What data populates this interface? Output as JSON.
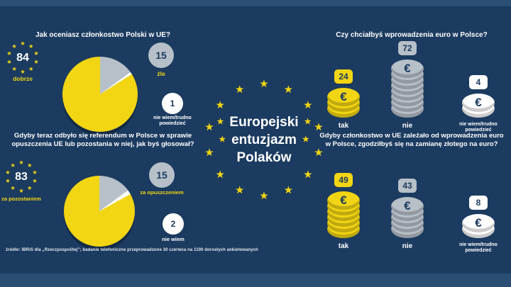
{
  "theme": {
    "bg": "#1B3B60",
    "bar": "#2B4E74",
    "yellow": "#F2D513",
    "gray": "#B7C0C8",
    "white": "#FFFFFF",
    "navy": "#1B3B60"
  },
  "icons": {
    "star": "★",
    "euro": "€"
  },
  "center": {
    "lines": [
      "Europejski",
      "entuzjazm",
      "Polaków"
    ]
  },
  "source": "źródło: IBRiS dla „Rzeczpospolitej”; badanie telefoniczne przeprowadzone 30 czerwca na 1100 dorosłych ankietowanych",
  "chart_data": [
    {
      "type": "pie",
      "title": "Jak oceniasz członkostwo Polski w UE?",
      "categories": [
        "dobrze",
        "źle",
        "nie wiem/trudno powiedzieć"
      ],
      "values": [
        84,
        15,
        1
      ],
      "colors": [
        "yellow",
        "gray",
        "white"
      ],
      "legend_position": "around"
    },
    {
      "type": "pie",
      "title": "Gdyby teraz odbyło się referendum w Polsce w sprawie opuszczenia UE lub pozostania w niej, jak byś głosował?",
      "categories": [
        "za pozostaniem",
        "za opuszczeniem",
        "nie wiem"
      ],
      "values": [
        83,
        15,
        2
      ],
      "colors": [
        "yellow",
        "gray",
        "white"
      ],
      "legend_position": "around"
    },
    {
      "type": "bar",
      "style": "coin-stacks",
      "title": "Czy chciałbyś wprowadzenia euro w Polsce?",
      "categories": [
        "tak",
        "nie",
        "nie wiem/trudno powiedzieć"
      ],
      "values": [
        24,
        72,
        4
      ],
      "colors": [
        "yellow",
        "gray",
        "white"
      ]
    },
    {
      "type": "bar",
      "style": "coin-stacks",
      "title": "Gdyby członkostwo w UE zależało od wprowadzenia euro w Polsce, zgodziłbyś się na zamianę złotego na euro?",
      "categories": [
        "tak",
        "nie",
        "nie wiem/trudno powiedzieć"
      ],
      "values": [
        49,
        43,
        8
      ],
      "colors": [
        "yellow",
        "gray",
        "white"
      ]
    }
  ]
}
